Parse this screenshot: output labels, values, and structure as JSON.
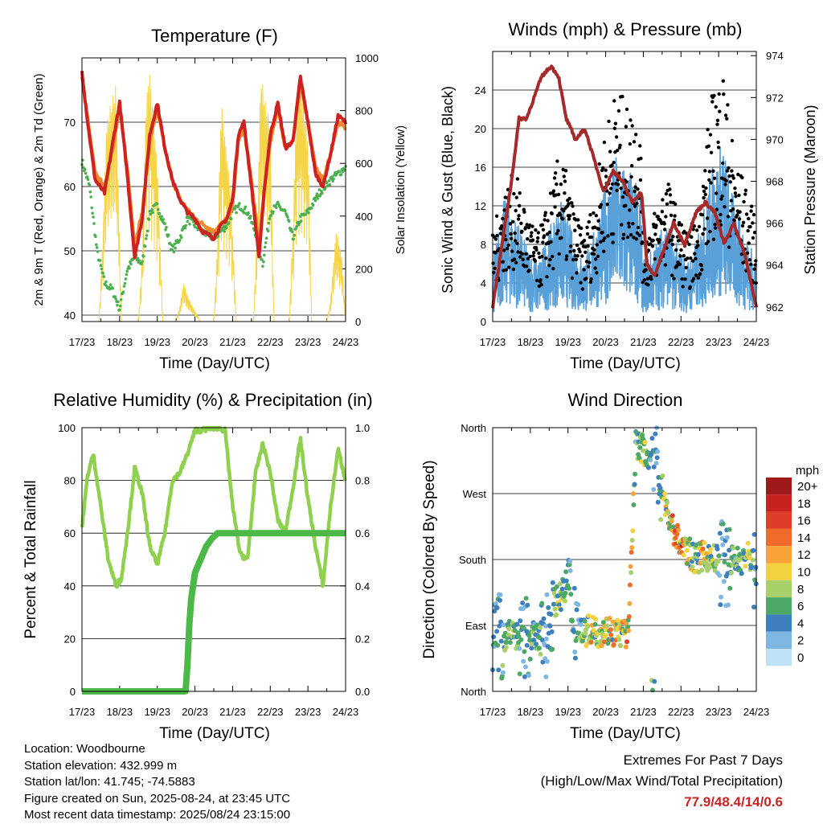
{
  "chart_data": [
    {
      "type": "line",
      "title": "Temperature (F)",
      "xlabel": "Time (Day/UTC)",
      "ylabel": "2m & 9m T (Red, Orange) & 2m Td (Green)",
      "ylabel_right": "Solar Insolation (Yellow)",
      "x_ticks": [
        "17/23",
        "18/23",
        "19/23",
        "20/23",
        "21/23",
        "22/23",
        "23/23",
        "24/23"
      ],
      "ylim": [
        39,
        80
      ],
      "y_ticks": [
        40,
        50,
        60,
        70
      ],
      "ylim_right": [
        0,
        1000
      ],
      "y_ticks_right": [
        0,
        200,
        400,
        600,
        800,
        1000
      ],
      "grid": "horizontal",
      "series": [
        {
          "name": "2m T",
          "color": "#cc2222",
          "x": [
            0,
            0.15,
            0.35,
            0.6,
            0.85,
            1.0,
            1.2,
            1.4,
            1.6,
            1.8,
            2.0,
            2.2,
            2.4,
            2.6,
            2.8,
            3.0,
            3.2,
            3.5,
            3.7,
            3.85,
            4.0,
            4.15,
            4.3,
            4.5,
            4.7,
            4.85,
            5.0,
            5.2,
            5.4,
            5.6,
            5.8,
            6.0,
            6.2,
            6.4,
            6.6,
            6.8,
            7.0
          ],
          "y": [
            78,
            70,
            61,
            59,
            68,
            73,
            62,
            49,
            55,
            68,
            73,
            66,
            61,
            58,
            56,
            55,
            53,
            52,
            54,
            55,
            58,
            68,
            70,
            60,
            49,
            60,
            68,
            73,
            66,
            67,
            77,
            70,
            62,
            60,
            65,
            71,
            70
          ]
        },
        {
          "name": "9m T",
          "color": "#f08a2c",
          "x": [
            0,
            0.35,
            0.6,
            0.85,
            1.0,
            1.2,
            1.4,
            1.6,
            1.8,
            2.0,
            2.2,
            2.4,
            2.6,
            3.0,
            3.5,
            3.85,
            4.0,
            4.15,
            4.3,
            4.5,
            4.7,
            4.85,
            5.0,
            5.2,
            5.4,
            5.6,
            5.8,
            6.0,
            6.2,
            6.4,
            6.6,
            6.8,
            7.0
          ],
          "y": [
            77,
            62,
            60,
            67,
            72,
            63,
            51,
            56,
            67,
            72,
            66,
            61,
            58,
            55,
            53,
            55,
            57,
            67,
            69,
            61,
            51,
            60,
            67,
            72,
            66,
            67,
            76,
            70,
            63,
            61,
            65,
            70,
            69
          ]
        },
        {
          "name": "2m Td",
          "color": "#4caf50",
          "x": [
            0,
            0.2,
            0.4,
            0.6,
            0.8,
            1.0,
            1.2,
            1.4,
            1.6,
            1.8,
            2.0,
            2.2,
            2.4,
            2.6,
            2.8,
            3.0,
            3.2,
            3.5,
            3.85,
            4.0,
            4.2,
            4.4,
            4.6,
            4.8,
            5.0,
            5.2,
            5.4,
            5.6,
            5.8,
            6.0,
            6.3,
            6.6,
            7.0
          ],
          "y": [
            64,
            60,
            50,
            45,
            44,
            41,
            47,
            49,
            48,
            56,
            57,
            54,
            50,
            52,
            55,
            54,
            53,
            52,
            54,
            56,
            57,
            56,
            53,
            48,
            56,
            57,
            56,
            52,
            55,
            56,
            59,
            61,
            63
          ]
        },
        {
          "name": "Solar Insolation",
          "color": "#f5d547",
          "axis": "right",
          "x": [
            0.45,
            0.55,
            0.65,
            0.75,
            0.9,
            1.05,
            1.5,
            1.6,
            1.7,
            1.8,
            2.0,
            2.15,
            2.5,
            2.6,
            2.7,
            2.8,
            3.0,
            3.15,
            3.5,
            3.6,
            3.7,
            3.8,
            3.95,
            4.1,
            4.55,
            4.65,
            4.75,
            4.85,
            5.0,
            5.1,
            5.5,
            5.6,
            5.7,
            5.8,
            6.0,
            6.1,
            6.5,
            6.6,
            6.75,
            6.9,
            7.0
          ],
          "y": [
            0,
            300,
            750,
            820,
            900,
            0,
            0,
            250,
            850,
            950,
            600,
            0,
            0,
            60,
            150,
            100,
            40,
            0,
            0,
            300,
            850,
            700,
            500,
            0,
            0,
            350,
            950,
            850,
            750,
            0,
            0,
            350,
            850,
            900,
            700,
            0,
            0,
            80,
            350,
            250,
            0
          ]
        }
      ]
    },
    {
      "type": "scatter",
      "title": "Winds (mph) & Pressure (mb)",
      "xlabel": "Time (Day/UTC)",
      "ylabel": "Sonic Wind & Gust (Blue, Black)",
      "ylabel_right": "Station Pressure (Maroon)",
      "x_ticks": [
        "17/23",
        "18/23",
        "19/23",
        "20/23",
        "21/23",
        "22/23",
        "23/23",
        "24/23"
      ],
      "ylim": [
        0,
        28
      ],
      "y_ticks": [
        0,
        4,
        8,
        12,
        16,
        20,
        24
      ],
      "ylim_right": [
        961.3,
        974.2
      ],
      "y_ticks_right": [
        962,
        964,
        966,
        968,
        970,
        972,
        974
      ],
      "grid": "horizontal",
      "series": [
        {
          "name": "Sonic Wind",
          "color": "#5aa0d8",
          "x": [
            0,
            0.3,
            0.6,
            0.9,
            1.2,
            1.5,
            1.8,
            2.1,
            2.4,
            2.7,
            3.0,
            3.3,
            3.6,
            3.9,
            4.0,
            4.3,
            4.6,
            4.9,
            5.2,
            5.5,
            5.8,
            6.1,
            6.4,
            6.7,
            7.0
          ],
          "y": [
            4,
            8,
            7,
            5,
            4,
            6,
            8,
            6,
            4,
            6,
            9,
            11,
            10,
            9,
            4,
            5,
            7,
            5,
            4,
            6,
            10,
            12,
            8,
            6,
            4
          ]
        },
        {
          "name": "Gust",
          "color": "#000000",
          "x": [
            0,
            0.3,
            0.6,
            0.9,
            1.2,
            1.5,
            1.8,
            2.1,
            2.4,
            2.7,
            3.0,
            3.3,
            3.6,
            3.9,
            4.0,
            4.3,
            4.6,
            4.9,
            5.2,
            5.5,
            5.8,
            6.1,
            6.4,
            6.7,
            7.0
          ],
          "y": [
            7,
            11,
            12,
            9,
            7,
            10,
            14,
            10,
            7,
            10,
            16,
            19,
            17,
            18,
            7,
            9,
            12,
            9,
            7,
            10,
            18,
            21,
            14,
            11,
            8
          ]
        },
        {
          "name": "Station Pressure",
          "color": "#a52a2a",
          "axis": "right",
          "x": [
            0,
            0.25,
            0.5,
            0.7,
            0.9,
            1.1,
            1.3,
            1.55,
            1.75,
            1.95,
            2.2,
            2.45,
            2.7,
            2.95,
            3.2,
            3.45,
            3.7,
            3.95,
            4.1,
            4.3,
            4.5,
            4.8,
            5.1,
            5.4,
            5.65,
            5.9,
            6.15,
            6.4,
            6.7,
            7.0
          ],
          "y": [
            962,
            965,
            968,
            971,
            971,
            972,
            973,
            973.5,
            973,
            971,
            970,
            970.5,
            969,
            967.5,
            968.5,
            968,
            967,
            967.5,
            964,
            963.5,
            964.5,
            966,
            965,
            966.5,
            967,
            966.5,
            965,
            966,
            964.5,
            962
          ]
        }
      ]
    },
    {
      "type": "line",
      "title": "Relative Humidity (%) & Precipitation (in)",
      "xlabel": "Time (Day/UTC)",
      "ylabel": "Percent & Total Rainfall",
      "x_ticks": [
        "17/23",
        "18/23",
        "19/23",
        "20/23",
        "21/23",
        "22/23",
        "23/23",
        "24/23"
      ],
      "ylim": [
        0,
        100
      ],
      "y_ticks": [
        0,
        20,
        40,
        60,
        80,
        100
      ],
      "ylim_right": [
        0,
        1.0
      ],
      "y_ticks_right": [
        "0.0",
        "0.2",
        "0.4",
        "0.6",
        "0.8",
        "1.0"
      ],
      "grid": "horizontal",
      "series": [
        {
          "name": "Relative Humidity",
          "color": "#8fd14f",
          "x": [
            0,
            0.15,
            0.3,
            0.5,
            0.7,
            0.9,
            1.05,
            1.25,
            1.4,
            1.6,
            1.8,
            2.0,
            2.2,
            2.4,
            2.6,
            2.8,
            3.0,
            3.2,
            3.4,
            3.6,
            3.8,
            4.0,
            4.2,
            4.4,
            4.6,
            4.8,
            5.0,
            5.2,
            5.4,
            5.6,
            5.8,
            6.0,
            6.2,
            6.4,
            6.6,
            6.8,
            7.0
          ],
          "y": [
            62,
            82,
            90,
            70,
            50,
            40,
            43,
            65,
            85,
            75,
            55,
            48,
            60,
            80,
            83,
            90,
            99,
            99,
            100,
            100,
            99,
            70,
            52,
            50,
            82,
            94,
            83,
            65,
            60,
            77,
            96,
            73,
            55,
            40,
            70,
            92,
            80
          ]
        },
        {
          "name": "Total Precipitation",
          "color": "#4cb848",
          "axis": "right",
          "x": [
            0,
            2.75,
            2.8,
            2.85,
            2.9,
            3.0,
            3.15,
            3.3,
            3.45,
            3.6,
            7.0
          ],
          "y": [
            0.0,
            0.0,
            0.1,
            0.25,
            0.35,
            0.45,
            0.5,
            0.55,
            0.58,
            0.6,
            0.6
          ]
        }
      ]
    },
    {
      "type": "scatter",
      "title": "Wind Direction",
      "xlabel": "Time (Day/UTC)",
      "ylabel": "Direction (Colored By Speed)",
      "x_ticks": [
        "17/23",
        "18/23",
        "19/23",
        "20/23",
        "21/23",
        "22/23",
        "23/23",
        "24/23"
      ],
      "y_ticks": [
        "North",
        "East",
        "South",
        "West",
        "North"
      ],
      "y_tick_values": [
        0,
        90,
        180,
        270,
        360
      ],
      "ylim": [
        0,
        360
      ],
      "grid": "horizontal",
      "colorbar": {
        "title": "mph",
        "labels": [
          "20+",
          "18",
          "16",
          "14",
          "12",
          "10",
          "8",
          "6",
          "4",
          "2",
          "0"
        ],
        "colors": [
          "#9e1a1a",
          "#c92020",
          "#e03c2a",
          "#f26a2b",
          "#f9a23a",
          "#f3d23f",
          "#a8d06a",
          "#4da865",
          "#3d7fbf",
          "#7fb7e2",
          "#bfe1f5"
        ]
      },
      "series": [
        {
          "name": "Direction",
          "x": [
            0.1,
            0.3,
            0.5,
            0.8,
            1.0,
            1.2,
            1.4,
            1.6,
            1.8,
            2.0,
            2.2,
            2.4,
            2.6,
            2.8,
            3.0,
            3.2,
            3.4,
            3.6,
            3.8,
            4.0,
            4.2,
            4.4,
            4.6,
            4.8,
            5.0,
            5.2,
            5.4,
            5.6,
            5.8,
            6.0,
            6.2,
            6.4,
            6.6,
            6.8,
            7.0
          ],
          "y": [
            80,
            70,
            90,
            60,
            80,
            70,
            75,
            120,
            130,
            140,
            100,
            80,
            85,
            80,
            85,
            82,
            80,
            78,
            340,
            330,
            320,
            310,
            250,
            220,
            200,
            190,
            180,
            185,
            182,
            178,
            175,
            180,
            178,
            185,
            170
          ],
          "speed": [
            4,
            6,
            8,
            5,
            6,
            7,
            4,
            6,
            8,
            5,
            4,
            8,
            10,
            12,
            10,
            11,
            10,
            14,
            6,
            8,
            6,
            4,
            10,
            12,
            14,
            10,
            8,
            12,
            8,
            6,
            4,
            8,
            6,
            10,
            4
          ]
        }
      ]
    }
  ],
  "info": {
    "location": "Location: Woodbourne",
    "elevation": "Station elevation: 432.999 m",
    "latlon": "Station lat/lon: 41.745; -74.5883",
    "created": "Figure created on Sun, 2025-08-24, at 23:45 UTC",
    "recent": "Most recent data timestamp: 2025/08/24 23:15:00"
  },
  "extremes": {
    "title": "Extremes For Past 7 Days",
    "subtitle": "(High/Low/Max Wind/Total Precipitation)",
    "values": "77.9/48.4/14/0.6"
  }
}
